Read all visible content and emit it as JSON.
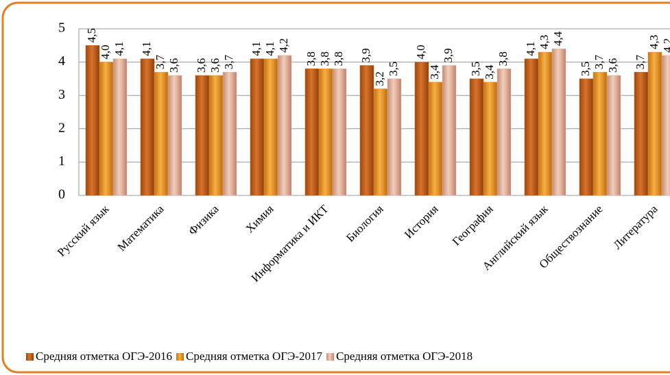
{
  "chart_data": {
    "type": "bar",
    "categories": [
      "Русский язык",
      "Математика",
      "Физика",
      "Химия",
      "Информатика и ИКТ",
      "Биология",
      "История",
      "География",
      "Английский язык",
      "Обществознание",
      "Литература"
    ],
    "series": [
      {
        "name": "Средняя отметка ОГЭ-2016",
        "color": "#c8621c",
        "values": [
          4.5,
          4.1,
          3.6,
          4.1,
          3.8,
          3.9,
          4.0,
          3.5,
          4.1,
          3.5,
          3.7
        ],
        "value_labels": [
          "4,5",
          "4,1",
          "3,6",
          "4,1",
          "3,8",
          "3,9",
          "4,0",
          "3,5",
          "4,1",
          "3,5",
          "3,7"
        ]
      },
      {
        "name": "Средняя отметка ОГЭ-2017",
        "color": "#f09a2c",
        "values": [
          4.0,
          3.7,
          3.6,
          4.1,
          3.8,
          3.2,
          3.4,
          3.4,
          4.3,
          3.7,
          4.3
        ],
        "value_labels": [
          "4,0",
          "3,7",
          "3,6",
          "4,1",
          "3,8",
          "3,2",
          "3,4",
          "3,4",
          "4,3",
          "3,7",
          "4,3"
        ]
      },
      {
        "name": "Средняя отметка ОГЭ-2018",
        "color": "#e6b49c",
        "values": [
          4.1,
          3.6,
          3.7,
          4.2,
          3.8,
          3.5,
          3.9,
          3.8,
          4.4,
          3.6,
          4.2
        ],
        "value_labels": [
          "4,1",
          "3,6",
          "3,7",
          "4,2",
          "3,8",
          "3,5",
          "3,9",
          "3,8",
          "4,4",
          "3,6",
          "4,2"
        ]
      }
    ],
    "ylim": [
      0,
      5
    ],
    "yticks": [
      0,
      1,
      2,
      3,
      4,
      5
    ],
    "grid": true,
    "legend": "bottom"
  }
}
